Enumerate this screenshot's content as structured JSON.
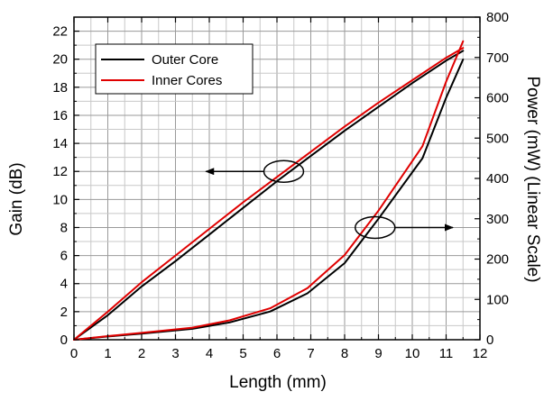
{
  "chart_data": {
    "type": "line",
    "title": "",
    "xlabel": "Length (mm)",
    "ylabel": "Gain (dB)",
    "y2label": "Power (mW) (Linear Scale)",
    "xlim": [
      0,
      12
    ],
    "ylim": [
      0,
      23
    ],
    "y2lim": [
      0,
      800
    ],
    "x_ticks": [
      0,
      1,
      2,
      3,
      4,
      5,
      6,
      7,
      8,
      9,
      10,
      11,
      12
    ],
    "y_ticks": [
      0,
      2,
      4,
      6,
      8,
      10,
      12,
      14,
      16,
      18,
      20,
      22
    ],
    "y2_ticks": [
      0,
      100,
      200,
      300,
      400,
      500,
      600,
      700,
      800
    ],
    "grid": true,
    "legend_position": "top-left",
    "series": [
      {
        "name": "Outer Core",
        "axis": "left",
        "color": "#000000",
        "x": [
          0,
          1,
          2,
          3,
          4,
          5,
          6,
          7,
          8,
          9,
          10,
          11,
          11.5
        ],
        "y": [
          0,
          1.75,
          3.8,
          5.6,
          7.5,
          9.4,
          11.3,
          13.1,
          14.9,
          16.6,
          18.3,
          19.9,
          20.6
        ]
      },
      {
        "name": "Inner Cores",
        "axis": "left",
        "color": "#e00000",
        "x": [
          0,
          1,
          2,
          3,
          4,
          5,
          6,
          7,
          8,
          9,
          10,
          11,
          11.5
        ],
        "y": [
          0,
          2.0,
          4.1,
          6.0,
          7.9,
          9.8,
          11.6,
          13.4,
          15.2,
          16.9,
          18.5,
          20.1,
          20.8
        ]
      },
      {
        "name": "Outer Core",
        "axis": "right",
        "color": "#000000",
        "x": [
          0,
          1,
          2,
          3.5,
          4.6,
          5.8,
          6.9,
          8.0,
          9.0,
          10.3,
          11.0,
          11.5
        ],
        "y": [
          0,
          8,
          15,
          27,
          43,
          70,
          115,
          190,
          300,
          450,
          600,
          695
        ]
      },
      {
        "name": "Inner Cores",
        "axis": "right",
        "color": "#e00000",
        "x": [
          0,
          1,
          2,
          3.5,
          4.6,
          5.8,
          6.9,
          8.0,
          9.0,
          10.3,
          11.0,
          11.5
        ],
        "y": [
          0,
          9,
          17,
          30,
          48,
          78,
          128,
          210,
          320,
          480,
          640,
          740
        ]
      }
    ],
    "annotations": [
      {
        "type": "ellipse",
        "target": "left-axis curves",
        "cx": 6.2,
        "cy": 12.0,
        "arrow_to_x": 3.9
      },
      {
        "type": "ellipse",
        "target": "right-axis curves",
        "cx": 8.9,
        "cy": 8.0,
        "arrow_to_x": 11.2
      }
    ]
  }
}
